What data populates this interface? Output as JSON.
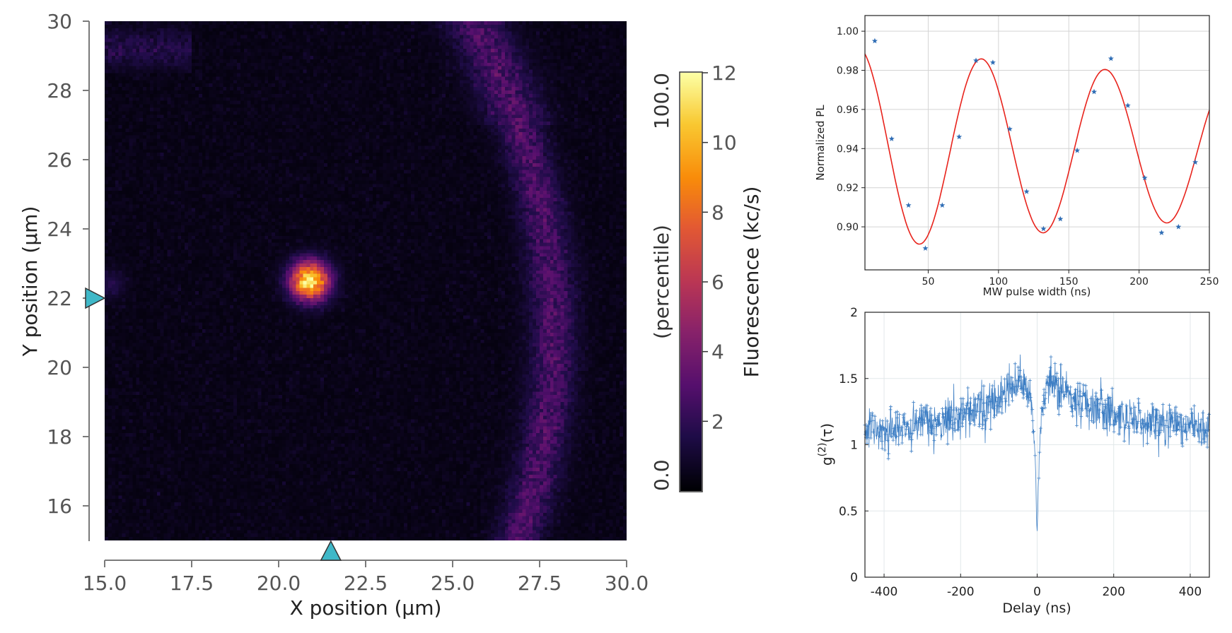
{
  "scan_map": {
    "xlabel": "X position (µm)",
    "ylabel": "Y position (µm)",
    "xlim": [
      15.0,
      30.0
    ],
    "ylim": [
      15.0,
      30.0
    ],
    "xticks": [
      "15.0",
      "17.5",
      "20.0",
      "22.5",
      "25.0",
      "27.5",
      "30.0"
    ],
    "xtick_values": [
      15.0,
      17.5,
      20.0,
      22.5,
      25.0,
      27.5,
      30.0
    ],
    "yticks": [
      "16",
      "18",
      "20",
      "22",
      "24",
      "26",
      "28",
      "30"
    ],
    "ytick_values": [
      16,
      18,
      20,
      22,
      24,
      26,
      28,
      30
    ],
    "cursor_x": 21.5,
    "cursor_y": 22.0,
    "cursor_color": "#3fb8c8",
    "colormap": "inferno",
    "bright_spot": {
      "x": 20.9,
      "y": 22.5,
      "peak": 11.5
    }
  },
  "colorbar": {
    "label": "Fluorescence (kc/s)",
    "percentile_label": "(percentile)",
    "percentile_top": "100.0",
    "percentile_bottom": "0.0",
    "range": [
      0,
      12
    ],
    "ticks": [
      "2",
      "4",
      "6",
      "8",
      "10",
      "12"
    ],
    "tick_values": [
      2,
      4,
      6,
      8,
      10,
      12
    ]
  },
  "chart_data": [
    {
      "type": "scatter",
      "name": "rabi",
      "xlabel": "MW pulse width (ns)",
      "ylabel": "Normalized PL",
      "xlim": [
        5,
        250
      ],
      "ylim": [
        0.878,
        1.008
      ],
      "xticks": [
        "50",
        "100",
        "150",
        "200",
        "250"
      ],
      "xtick_values": [
        50,
        100,
        150,
        200,
        250
      ],
      "yticks": [
        "0.90",
        "0.92",
        "0.94",
        "0.96",
        "0.98",
        "1.00"
      ],
      "ytick_values": [
        0.9,
        0.92,
        0.94,
        0.96,
        0.98,
        1.0
      ],
      "grid": true,
      "marker_color": "#2f6db5",
      "fit_color": "#e8231c",
      "x": [
        12,
        24,
        36,
        48,
        60,
        72,
        84,
        96,
        108,
        120,
        132,
        144,
        156,
        168,
        180,
        192,
        204,
        216,
        228,
        240
      ],
      "y": [
        0.995,
        0.945,
        0.911,
        0.889,
        0.911,
        0.946,
        0.985,
        0.984,
        0.95,
        0.918,
        0.899,
        0.904,
        0.939,
        0.969,
        0.986,
        0.962,
        0.925,
        0.897,
        0.9,
        0.933
      ],
      "fit": {
        "offset": 0.94,
        "amplitude": 0.052,
        "period_ns": 88,
        "decay_ns": 700
      }
    },
    {
      "type": "line",
      "name": "g2",
      "xlabel": "Delay (ns)",
      "ylabel_main": "g",
      "ylabel_sup": "(2)",
      "ylabel_tail": "(τ)",
      "xlim": [
        -450,
        450
      ],
      "ylim": [
        0,
        2
      ],
      "xticks": [
        "-400",
        "-200",
        "0",
        "200",
        "400"
      ],
      "xtick_values": [
        -400,
        -200,
        0,
        200,
        400
      ],
      "yticks": [
        "0",
        "0.5",
        "1",
        "1.5",
        "2"
      ],
      "ytick_values": [
        0,
        0.5,
        1,
        1.5,
        2
      ],
      "grid": true,
      "line_color": "#3d7ec4",
      "model": {
        "baseline": 1.08,
        "bunching_amp": 0.52,
        "bunching_tau_ns": 150,
        "dip_min": 0.3,
        "dip_tau_ns": 9,
        "noise": 0.08
      }
    }
  ]
}
